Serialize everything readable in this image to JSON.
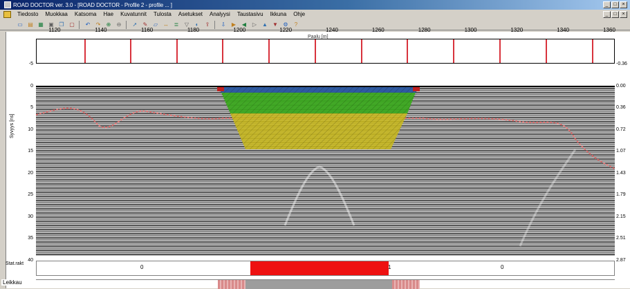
{
  "window": {
    "title": "ROAD DOCTOR ver. 3.0 - [ROAD DOCTOR - Profile 2 - profile ... ]",
    "minimize": "_",
    "maximize": "□",
    "close": "×",
    "mdi_minimize": "_",
    "mdi_restore": "□",
    "mdi_close": "×"
  },
  "menu": {
    "items": [
      "Tiedosto",
      "Muokkaa",
      "Katsoma",
      "Hae",
      "Kuvatunnit",
      "Tulosta",
      "Asetukset",
      "Analyysi",
      "Taustasivu",
      "Ikkuna",
      "Ohje"
    ]
  },
  "toolbar": {
    "icons": [
      "new-file",
      "open-folder",
      "save",
      "print",
      "copy",
      "paste",
      "undo",
      "redo",
      "zoom-in",
      "zoom-out",
      "pointer",
      "pen",
      "eraser",
      "measure",
      "layers",
      "filter",
      "color",
      "export",
      "import",
      "play",
      "back",
      "forward",
      "up",
      "down",
      "settings",
      "help"
    ]
  },
  "chart": {
    "position_label": "Paalu [m]",
    "x_labels": [
      "1120",
      "1140",
      "1160",
      "1180",
      "1200",
      "1220",
      "1240",
      "1260",
      "1280",
      "1300",
      "1320",
      "1340",
      "1360"
    ],
    "y_labels": [
      "-5",
      "0",
      "5",
      "10",
      "15",
      "20",
      "25",
      "30",
      "35",
      "40"
    ],
    "y_axis_title": "Syvyys [ns]",
    "right_labels": [
      "-0.36",
      "0.00",
      "0.36",
      "0.72",
      "1.07",
      "1.43",
      "1.79",
      "2.15",
      "2.51",
      "2.87"
    ],
    "colors": {
      "marker": "#d8323c",
      "blue_layer": "#2f5aa0",
      "green_layer": "#3aa81c",
      "yellow_layer": "#c8b81c"
    }
  },
  "row_bar": {
    "label": "Stat.rakt",
    "segments": [
      "0",
      "1",
      "0"
    ],
    "highlight_fraction": [
      0.37,
      0.61
    ]
  },
  "status": {
    "label": "Leikkau"
  }
}
